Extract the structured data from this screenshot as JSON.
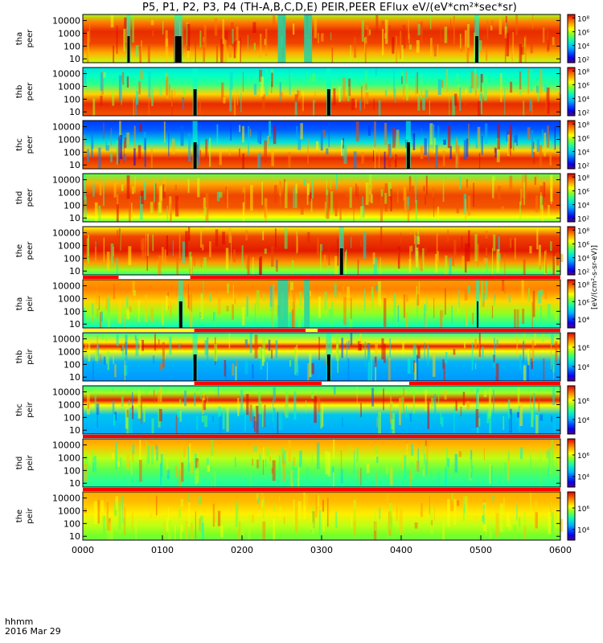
{
  "title": "P5, P1, P2, P3, P4 (TH-A,B,C,D,E) PEIR,PEER EFlux eV/(eV*cm²*sec*sr)",
  "xaxis": {
    "ticks": [
      "0000",
      "0100",
      "0200",
      "0300",
      "0400",
      "0500",
      "0600"
    ],
    "footer_line1": "hhmm",
    "footer_line2": "2016 Mar 29"
  },
  "colorbar_unit_label": "[eV/(cm²-s-sr-eV)]",
  "chart_data": {
    "type": "heatmap",
    "title": "P5, P1, P2, P3, P4 (TH-A,B,C,D,E) PEIR,PEER EFlux eV/(eV*cm²*sec*sr)",
    "xlabel": "hhmm",
    "x_range": [
      "0000",
      "0600"
    ],
    "date": "2016 Mar 29",
    "yscale": "log",
    "colorscale": "log",
    "panels": [
      {
        "label1": "tha",
        "label2": "peer",
        "ylim": [
          5,
          30000
        ],
        "yticks": [
          "10",
          "100",
          "1000",
          "10000"
        ],
        "cbar_ticks": [
          "10²",
          "10⁴",
          "10⁶",
          "10⁸"
        ],
        "cbar_exps": [
          2,
          4,
          6,
          8
        ],
        "cbar_range": [
          1.5,
          8.5
        ],
        "gaps": [
          [
            0.55,
            0.6
          ],
          [
            1.15,
            1.25
          ],
          [
            4.92,
            4.98
          ]
        ],
        "bursts": [
          [
            2.45,
            2.55
          ],
          [
            2.78,
            2.88
          ]
        ],
        "status": [],
        "style": "electron_hot"
      },
      {
        "label1": "thb",
        "label2": "peer",
        "ylim": [
          5,
          30000
        ],
        "yticks": [
          "10",
          "100",
          "1000",
          "10000"
        ],
        "cbar_ticks": [
          "10²",
          "10⁴",
          "10⁶",
          "10⁸"
        ],
        "cbar_exps": [
          2,
          4,
          6,
          8
        ],
        "cbar_range": [
          1.5,
          8.5
        ],
        "gaps": [
          [
            1.38,
            1.44
          ],
          [
            3.06,
            3.12
          ]
        ],
        "bursts": [],
        "status": [],
        "style": "electron_mid"
      },
      {
        "label1": "thc",
        "label2": "peer",
        "ylim": [
          5,
          30000
        ],
        "yticks": [
          "10",
          "100",
          "1000",
          "10000"
        ],
        "cbar_ticks": [
          "10²",
          "10⁴",
          "10⁶",
          "10⁸"
        ],
        "cbar_exps": [
          2,
          4,
          6,
          8
        ],
        "cbar_range": [
          1.5,
          8.5
        ],
        "gaps": [
          [
            1.38,
            1.44
          ],
          [
            4.06,
            4.12
          ]
        ],
        "bursts": [],
        "status": [],
        "style": "electron_cold"
      },
      {
        "label1": "thd",
        "label2": "peer",
        "ylim": [
          5,
          30000
        ],
        "yticks": [
          "10",
          "100",
          "1000",
          "10000"
        ],
        "cbar_ticks": [
          "10²",
          "10⁴",
          "10⁶",
          "10⁸"
        ],
        "cbar_exps": [
          2,
          4,
          6,
          8
        ],
        "cbar_range": [
          1.5,
          8.5
        ],
        "gaps": [],
        "bursts": [],
        "status": [],
        "style": "electron_hot2"
      },
      {
        "label1": "the",
        "label2": "peer",
        "ylim": [
          5,
          30000
        ],
        "yticks": [
          "10",
          "100",
          "1000",
          "10000"
        ],
        "cbar_ticks": [
          "10²",
          "10⁴",
          "10⁶",
          "10⁸"
        ],
        "cbar_exps": [
          2,
          4,
          6,
          8
        ],
        "cbar_range": [
          1.5,
          8.5
        ],
        "gaps": [
          [
            3.22,
            3.28
          ]
        ],
        "bursts": [],
        "status": [
          [
            0,
            0.45,
            "#ff0000"
          ],
          [
            0.45,
            1.35,
            "#ffffff"
          ],
          [
            1.35,
            6,
            "#ff0000"
          ]
        ],
        "style": "electron_hot3"
      },
      {
        "label1": "tha",
        "label2": "peir",
        "ylim": [
          5,
          30000
        ],
        "yticks": [
          "10",
          "100",
          "1000",
          "10000"
        ],
        "cbar_ticks": [
          "10⁴",
          "10⁶",
          "10⁸"
        ],
        "cbar_exps": [
          4,
          6,
          8
        ],
        "cbar_range": [
          3,
          8.5
        ],
        "gaps": [
          [
            1.2,
            1.26
          ],
          [
            4.94,
            4.98
          ]
        ],
        "bursts": [
          [
            2.45,
            2.58
          ],
          [
            2.78,
            2.85
          ]
        ],
        "status": [
          [
            0,
            1.4,
            "#ffff00"
          ],
          [
            1.4,
            2.8,
            "#ff0000"
          ],
          [
            2.8,
            2.95,
            "#ffff00"
          ],
          [
            2.95,
            6,
            "#ff0000"
          ]
        ],
        "style": "ion_a"
      },
      {
        "label1": "thb",
        "label2": "peir",
        "ylim": [
          5,
          30000
        ],
        "yticks": [
          "10",
          "100",
          "1000",
          "10000"
        ],
        "cbar_ticks": [
          "10⁴",
          "10⁶"
        ],
        "cbar_exps": [
          4,
          6
        ],
        "cbar_range": [
          2.5,
          7.5
        ],
        "gaps": [
          [
            1.38,
            1.44
          ],
          [
            3.06,
            3.12
          ]
        ],
        "bursts": [],
        "status": [
          [
            0,
            1.4,
            "#ffffff"
          ],
          [
            1.4,
            3.0,
            "#ff0000"
          ],
          [
            3.0,
            4.1,
            "#ffffff"
          ],
          [
            4.1,
            6,
            "#ff0000"
          ]
        ],
        "style": "ion_b"
      },
      {
        "label1": "thc",
        "label2": "peir",
        "ylim": [
          5,
          30000
        ],
        "yticks": [
          "10",
          "100",
          "1000",
          "10000"
        ],
        "cbar_ticks": [
          "10⁴",
          "10⁶"
        ],
        "cbar_exps": [
          4,
          6
        ],
        "cbar_range": [
          2.5,
          7.5
        ],
        "gaps": [],
        "bursts": [],
        "status": [
          [
            0,
            6,
            "#ff0000"
          ]
        ],
        "style": "ion_c"
      },
      {
        "label1": "thd",
        "label2": "peir",
        "ylim": [
          5,
          30000
        ],
        "yticks": [
          "10",
          "100",
          "1000",
          "10000"
        ],
        "cbar_ticks": [
          "10⁴",
          "10⁶"
        ],
        "cbar_exps": [
          4,
          6
        ],
        "cbar_range": [
          3,
          7.5
        ],
        "gaps": [],
        "bursts": [],
        "status": [
          [
            0,
            6,
            "#ff0000"
          ]
        ],
        "style": "ion_d"
      },
      {
        "label1": "the",
        "label2": "peir",
        "ylim": [
          5,
          30000
        ],
        "yticks": [
          "10",
          "100",
          "1000",
          "10000"
        ],
        "cbar_ticks": [
          "10⁴",
          "10⁶"
        ],
        "cbar_exps": [
          4,
          6
        ],
        "cbar_range": [
          3,
          7.5
        ],
        "gaps": [],
        "bursts": [],
        "status": [],
        "style": "ion_e"
      }
    ]
  }
}
